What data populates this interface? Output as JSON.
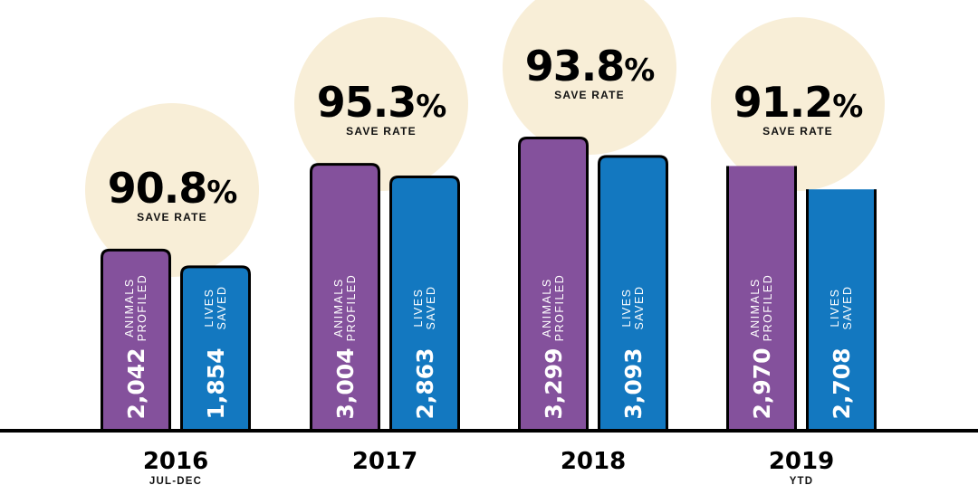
{
  "chart_data": {
    "type": "bar",
    "categories": [
      "2016",
      "2017",
      "2018",
      "2019"
    ],
    "category_subtitles": [
      "JUL-DEC",
      "",
      "",
      "YTD"
    ],
    "series": [
      {
        "name": "ANIMALS PROFILED",
        "label_lines": [
          "ANIMALS",
          "PROFILED"
        ],
        "values": [
          2042,
          3004,
          3299,
          2970
        ],
        "value_labels": [
          "2,042",
          "3,004",
          "3,299",
          "2,970"
        ],
        "color": "#84519c"
      },
      {
        "name": "LIVES SAVED",
        "label_lines": [
          "LIVES",
          "SAVED"
        ],
        "values": [
          1854,
          2863,
          3093,
          2708
        ],
        "value_labels": [
          "1,854",
          "2,863",
          "3,093",
          "2,708"
        ],
        "color": "#1378c0"
      }
    ],
    "annotations": {
      "save_rate_values": [
        "90.8",
        "95.3",
        "93.8",
        "91.2"
      ],
      "percent_sign": "%",
      "save_rate_label": "SAVE RATE",
      "circle_color": "#f8eed7"
    },
    "grid": false,
    "ylim": [
      0,
      4800
    ]
  }
}
